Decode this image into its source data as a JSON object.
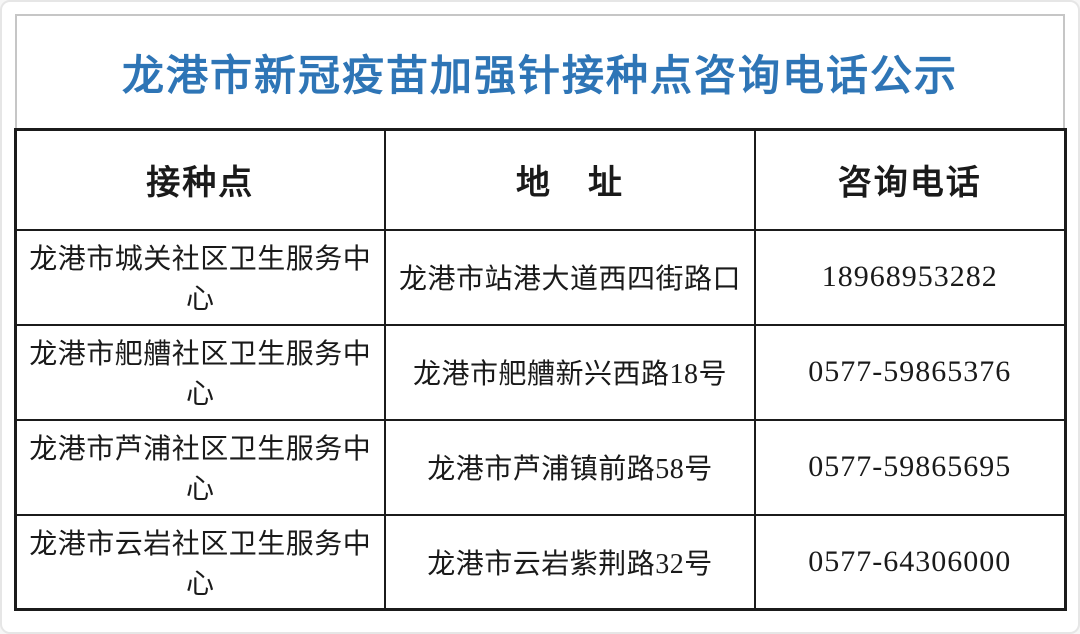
{
  "title": "龙港市新冠疫苗加强针接种点咨询电话公示",
  "colors": {
    "title_blue": "#2e75b6",
    "grid_border": "#1b1b1b",
    "title_box_border": "#c6c6c6",
    "background": "#ffffff"
  },
  "table": {
    "headers": [
      "接种点",
      "地　址",
      "咨询电话"
    ],
    "rows": [
      {
        "site": "龙港市城关社区卫生服务中心",
        "address": "龙港市站港大道西四街路口",
        "phone": "18968953282"
      },
      {
        "site": "龙港市舥艚社区卫生服务中心",
        "address": "龙港市舥艚新兴西路18号",
        "phone": "0577-59865376"
      },
      {
        "site": "龙港市芦浦社区卫生服务中心",
        "address": "龙港市芦浦镇前路58号",
        "phone": "0577-59865695"
      },
      {
        "site": "龙港市云岩社区卫生服务中心",
        "address": "龙港市云岩紫荆路32号",
        "phone": "0577-64306000"
      }
    ]
  }
}
